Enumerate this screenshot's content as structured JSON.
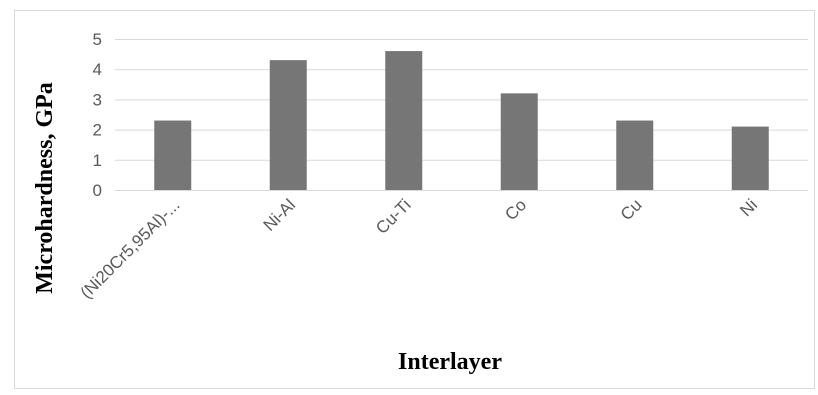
{
  "chart_data": {
    "type": "bar",
    "title": "",
    "xlabel": "Interlayer",
    "ylabel": "Microhardness, GPa",
    "categories": [
      "(Ni20Cr5,95Al)-...",
      "Ni-Al",
      "Cu-Ti",
      "Co",
      "Cu",
      "Ni"
    ],
    "values": [
      2.3,
      4.3,
      4.6,
      3.2,
      2.3,
      2.1
    ],
    "ylim": [
      0,
      5
    ],
    "yticks": [
      "0",
      "1",
      "2",
      "3",
      "4",
      "5"
    ],
    "grid": true,
    "legend": "none",
    "bar_color": "#767676"
  }
}
